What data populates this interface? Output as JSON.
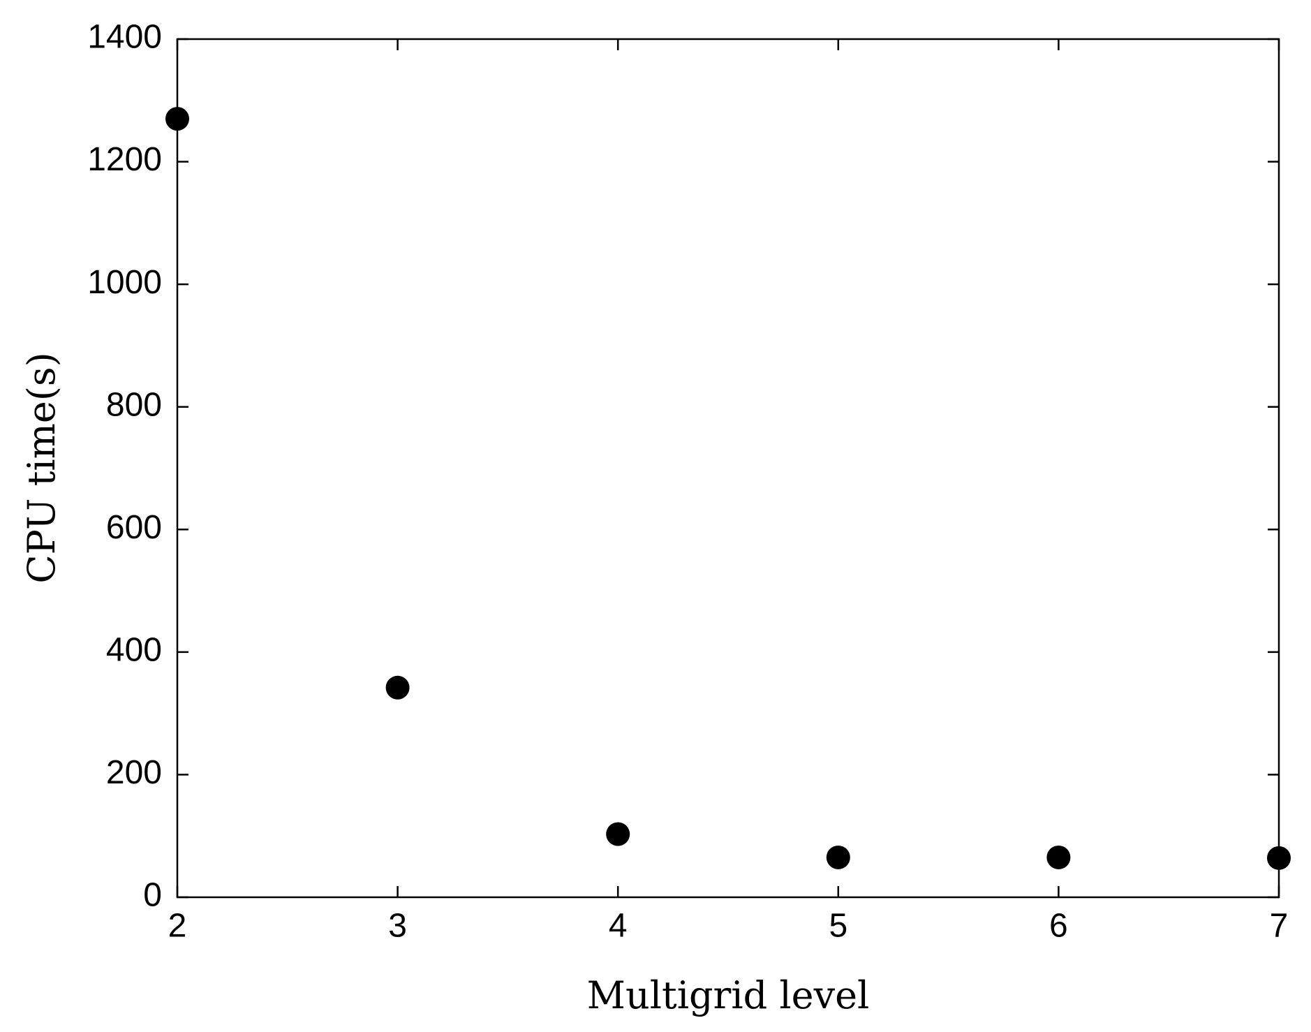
{
  "chart_data": {
    "type": "scatter",
    "x_label": "Multigrid level",
    "y_label": "CPU time(s)",
    "series": [
      {
        "color": "#000000",
        "x": [
          2,
          3,
          4,
          5,
          6,
          7
        ],
        "values": [
          1270,
          342,
          103,
          65,
          65,
          64
        ]
      }
    ],
    "xlim": [
      2,
      7
    ],
    "xticks": [
      2,
      3,
      4,
      5,
      6,
      7
    ],
    "ylim": [
      0,
      1400
    ],
    "yticks": [
      0,
      200,
      400,
      600,
      800,
      1000,
      1200,
      1400
    ],
    "grid": false
  }
}
